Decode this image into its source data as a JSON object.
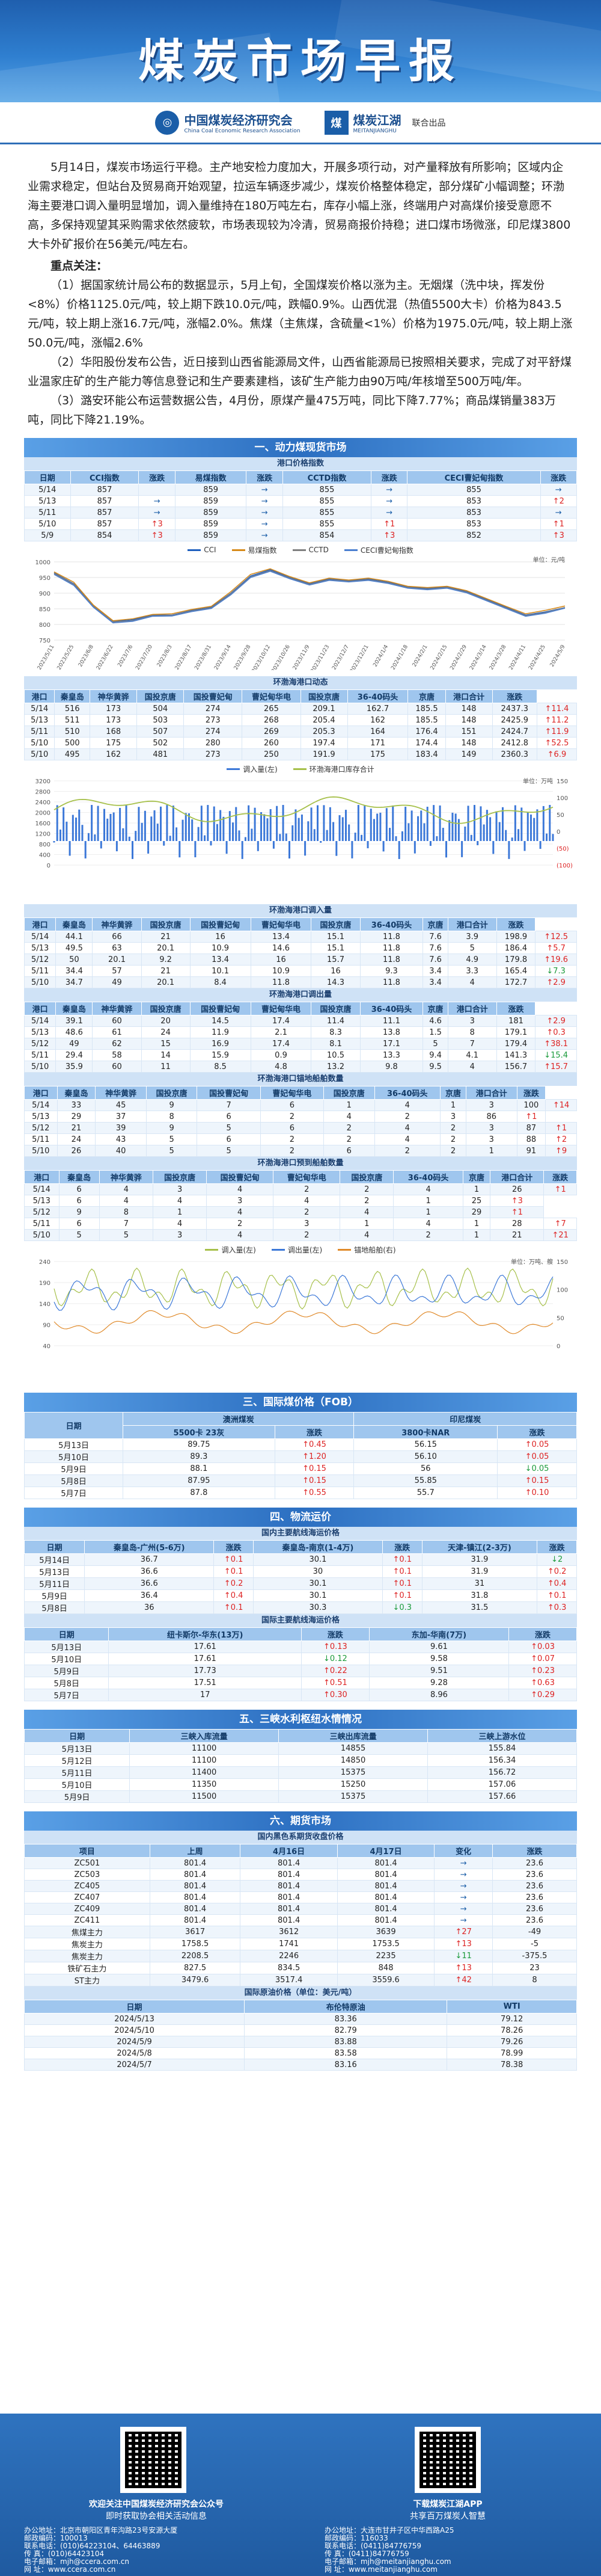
{
  "header": {
    "title": "煤炭市场早报",
    "org1_name": "中国煤炭经济研究会",
    "org1_sub": "China Coal Economic Research Association",
    "org2_name": "煤炭江湖",
    "org2_sub": "MEITANJIANGHU",
    "joint": "联合出品"
  },
  "intro": {
    "p1": "5月14日，煤炭市场运行平稳。主产地安检力度加大，开展多项行动，对产量释放有所影响；区域内企业需求稳定，但站台及贸易商开始观望，拉运车辆逐步减少，煤炭价格整体稳定，部分煤矿小幅调整；环渤海主要港口调入量明显增加，调入量维持在180万吨左右，库存小幅上涨，终端用户对高煤价接受意愿不高，多保持观望其采购需求依然疲软，市场表现较为冷清，贸易商报价持稳；进口煤市场微涨，印尼煤3800大卡外矿报价在56美元/吨左右。",
    "h": "重点关注：",
    "p2": "（1）据国家统计局公布的数据显示，5月上旬，全国煤炭价格以涨为主。无烟煤（洗中块，挥发份<8%）价格1125.0元/吨，较上期下跌10.0元/吨，跌幅0.9%。山西优混（热值5500大卡）价格为843.5元/吨，较上期上涨16.7元/吨，涨幅2.0%。焦煤（主焦煤，含硫量<1%）价格为1975.0元/吨，较上期上涨50.0元/吨，涨幅2.6%",
    "p3": "（2）华阳股份发布公告，近日接到山西省能源局文件，山西省能源局已按照相关要求，完成了对平舒煤业温家庄矿的生产能力等信息登记和生产要素建档，该矿生产能力由90万吨/年核增至500万吨/年。",
    "p4": "（3）潞安环能公布运营数据公告，4月份，原煤产量475万吨，同比下降7.77%；商品煤销量383万吨，同比下降21.19%。"
  },
  "sec1": {
    "title": "一、动力煤现货市场",
    "sub": "港口价格指数",
    "headers": [
      "日期",
      "CCI指数",
      "涨跌",
      "易煤指数",
      "涨跌",
      "CCTD指数",
      "涨跌",
      "CECI曹妃甸指数",
      "涨跌"
    ],
    "rows": [
      [
        "5/14",
        "857",
        "",
        "859",
        "→",
        "855",
        "→",
        "855",
        "→"
      ],
      [
        "5/13",
        "857",
        "→",
        "859",
        "→",
        "855",
        "→",
        "853",
        "↑2"
      ],
      [
        "5/11",
        "857",
        "→",
        "859",
        "→",
        "855",
        "→",
        "853",
        "→"
      ],
      [
        "5/10",
        "857",
        "↑3",
        "859",
        "→",
        "855",
        "↑1",
        "853",
        "↑1"
      ],
      [
        "5/9",
        "854",
        "↑3",
        "859",
        "→",
        "854",
        "↑3",
        "852",
        "↑3"
      ]
    ],
    "legend": [
      "CCI",
      "易煤指数",
      "CCTD",
      "CECI曹妃甸指数"
    ],
    "unit": "单位：元/吨"
  },
  "chart1": {
    "type": "line",
    "ylim": [
      750,
      1000
    ],
    "yticks": [
      "1000",
      "950",
      "900",
      "850",
      "800",
      "750"
    ],
    "xlabels": [
      "2023/5/11",
      "2023/5/25",
      "2023/6/8",
      "2023/6/22",
      "2023/7/6",
      "2023/7/20",
      "2023/8/3",
      "2023/8/17",
      "2023/8/31",
      "2023/9/14",
      "2023/9/28",
      "2023/10/12",
      "2023/10/26",
      "2023/11/9",
      "2023/11/23",
      "2023/12/7",
      "2023/12/21",
      "2024/1/4",
      "2024/1/18",
      "2024/2/1",
      "2024/2/15",
      "2024/2/29",
      "2024/3/14",
      "2024/3/28",
      "2024/4/11",
      "2024/4/25",
      "2024/5/9"
    ],
    "series": [
      {
        "name": "CCI",
        "values": [
          965,
          930,
          860,
          810,
          815,
          830,
          830,
          845,
          855,
          900,
          955,
          975,
          950,
          930,
          945,
          940,
          945,
          935,
          920,
          915,
          920,
          905,
          880,
          855,
          830,
          840,
          854
        ]
      },
      {
        "name": "易煤指数",
        "values": [
          968,
          935,
          862,
          812,
          818,
          832,
          834,
          848,
          858,
          905,
          960,
          978,
          953,
          933,
          948,
          942,
          948,
          938,
          922,
          918,
          922,
          908,
          883,
          858,
          834,
          845,
          859
        ]
      },
      {
        "name": "CCTD",
        "values": [
          963,
          928,
          858,
          808,
          812,
          828,
          829,
          843,
          853,
          898,
          952,
          972,
          948,
          928,
          943,
          938,
          943,
          933,
          918,
          913,
          918,
          903,
          878,
          853,
          828,
          838,
          854
        ]
      },
      {
        "name": "CECI曹妃甸指数",
        "values": [
          960,
          925,
          855,
          805,
          810,
          826,
          827,
          841,
          851,
          895,
          950,
          970,
          946,
          926,
          941,
          936,
          941,
          931,
          916,
          911,
          916,
          901,
          876,
          851,
          826,
          836,
          852
        ]
      }
    ],
    "colors": [
      "#1f5fbf",
      "#d68a1a",
      "#7f7f7f",
      "#4a7fd0"
    ]
  },
  "sec2": {
    "sub": "环渤海港口动态",
    "headers": [
      "港口",
      "秦皇岛",
      "神华黄骅",
      "国投京唐",
      "国投曹妃甸",
      "曹妃甸华电",
      "国投京唐",
      "36-40码头",
      "京唐",
      "港口合计",
      "涨跌"
    ],
    "rows": [
      [
        "5/14",
        "516",
        "173",
        "504",
        "274",
        "265",
        "209.1",
        "162.7",
        "185.5",
        "148",
        "2437.3",
        "↑11.4"
      ],
      [
        "5/13",
        "511",
        "173",
        "503",
        "273",
        "268",
        "205.4",
        "162",
        "185.5",
        "148",
        "2425.9",
        "↑11.2"
      ],
      [
        "5/11",
        "510",
        "168",
        "507",
        "274",
        "269",
        "205.3",
        "164",
        "176.4",
        "151",
        "2424.7",
        "↑11.9"
      ],
      [
        "5/10",
        "500",
        "175",
        "502",
        "280",
        "260",
        "197.4",
        "171",
        "174.4",
        "148",
        "2412.8",
        "↑52.5"
      ],
      [
        "5/10",
        "495",
        "162",
        "481",
        "273",
        "250",
        "191.9",
        "175",
        "183.4",
        "149",
        "2360.3",
        "↑6.9"
      ]
    ],
    "headers_full": [
      "港口",
      "秦皇岛",
      "神华黄骅",
      "国投京唐",
      "国投曹妃甸",
      "曹妃甸华电",
      "国投京唐",
      "36-40码头",
      "京唐",
      "港口合计",
      "涨跌"
    ]
  },
  "chart2": {
    "type": "line",
    "legend": [
      "调入量(左)",
      "环渤海港口库存合计"
    ],
    "unit": "单位：万吨",
    "left": [
      "3200",
      "2800",
      "2400",
      "2000",
      "1600",
      "1200",
      "800",
      "400",
      "0"
    ],
    "right": [
      "150",
      "100",
      "50",
      "0",
      "(50)",
      "(100)"
    ]
  },
  "sec3": {
    "sub": "环渤海港口调入量",
    "headers": [
      "港口",
      "秦皇岛",
      "神华黄骅",
      "国投京唐",
      "国投曹妃甸",
      "曹妃甸华电",
      "国投京唐",
      "36-40码头",
      "京唐",
      "港口合计",
      "涨跌"
    ],
    "rows": [
      [
        "5/14",
        "44.1",
        "66",
        "21",
        "16",
        "13.4",
        "15.1",
        "11.8",
        "7.6",
        "3.9",
        "198.9",
        "↑12.5"
      ],
      [
        "5/13",
        "49.5",
        "63",
        "20.1",
        "10.9",
        "14.6",
        "15.1",
        "11.8",
        "7.6",
        "5",
        "186.4",
        "↑5.7"
      ],
      [
        "5/12",
        "50",
        "20.1",
        "9.2",
        "13.4",
        "16",
        "15.7",
        "11.8",
        "7.6",
        "4.9",
        "179.8",
        "↑19.6"
      ],
      [
        "5/11",
        "34.4",
        "57",
        "21",
        "10.1",
        "10.9",
        "16",
        "9.3",
        "3.4",
        "3.3",
        "165.4",
        "↓7.3"
      ],
      [
        "5/10",
        "34.7",
        "49",
        "20.1",
        "8.4",
        "11.8",
        "14.3",
        "11.8",
        "3.4",
        "4",
        "172.7",
        "↑2.9"
      ]
    ]
  },
  "sec4": {
    "sub": "环渤海港口调出量",
    "headers": [
      "港口",
      "秦皇岛",
      "神华黄骅",
      "国投京唐",
      "国投曹妃甸",
      "曹妃甸华电",
      "国投京唐",
      "36-40码头",
      "京唐",
      "港口合计",
      "涨跌"
    ],
    "rows": [
      [
        "5/14",
        "39.1",
        "60",
        "20",
        "14.5",
        "17.4",
        "11.4",
        "11.1",
        "4.6",
        "3",
        "181",
        "↑2.9"
      ],
      [
        "5/13",
        "48.6",
        "61",
        "24",
        "11.9",
        "2.1",
        "8.3",
        "13.8",
        "1.5",
        "8",
        "179.1",
        "↑0.3"
      ],
      [
        "5/12",
        "49",
        "62",
        "15",
        "16.9",
        "17.4",
        "8.1",
        "17.1",
        "5",
        "7",
        "179.4",
        "↑38.1"
      ],
      [
        "5/11",
        "29.4",
        "58",
        "14",
        "15.9",
        "0.9",
        "10.5",
        "13.3",
        "9.4",
        "4.1",
        "141.3",
        "↓15.4"
      ],
      [
        "5/10",
        "35.9",
        "60",
        "11",
        "8.5",
        "4.8",
        "13.2",
        "9.8",
        "9.5",
        "4",
        "156.7",
        "↑15.7"
      ]
    ]
  },
  "sec5": {
    "sub": "环渤海港口锚地船舶数量",
    "headers": [
      "港口",
      "秦皇岛",
      "神华黄骅",
      "国投京唐",
      "国投曹妃甸",
      "曹妃甸华电",
      "国投京唐",
      "36-40码头",
      "京唐",
      "港口合计",
      "涨跌"
    ],
    "rows": [
      [
        "5/14",
        "33",
        "45",
        "9",
        "7",
        "6",
        "1",
        "4",
        "1",
        "3",
        "100",
        "↑14"
      ],
      [
        "5/13",
        "29",
        "37",
        "8",
        "6",
        "2",
        "4",
        "2",
        "3",
        "86",
        "↑1"
      ],
      [
        "5/12",
        "21",
        "39",
        "9",
        "5",
        "6",
        "2",
        "4",
        "2",
        "3",
        "87",
        "↑1"
      ],
      [
        "5/11",
        "24",
        "43",
        "5",
        "6",
        "2",
        "2",
        "4",
        "2",
        "3",
        "88",
        "↑2"
      ],
      [
        "5/10",
        "26",
        "40",
        "5",
        "5",
        "2",
        "6",
        "2",
        "2",
        "1",
        "91",
        "↑9"
      ]
    ]
  },
  "sec6": {
    "sub": "环渤海港口预到船舶数量",
    "headers": [
      "港口",
      "秦皇岛",
      "神华黄骅",
      "国投京唐",
      "国投曹妃甸",
      "曹妃甸华电",
      "国投京唐",
      "36-40码头",
      "京唐",
      "港口合计",
      "涨跌"
    ],
    "rows": [
      [
        "5/14",
        "6",
        "4",
        "3",
        "4",
        "2",
        "2",
        "4",
        "1",
        "26",
        "↑1"
      ],
      [
        "5/13",
        "6",
        "4",
        "4",
        "3",
        "4",
        "2",
        "1",
        "25",
        "↑3"
      ],
      [
        "5/12",
        "9",
        "8",
        "1",
        "4",
        "2",
        "4",
        "1",
        "29",
        "↑1"
      ],
      [
        "5/11",
        "6",
        "7",
        "4",
        "2",
        "3",
        "1",
        "4",
        "1",
        "28",
        "↑7"
      ],
      [
        "5/10",
        "5",
        "5",
        "3",
        "4",
        "2",
        "4",
        "2",
        "1",
        "21",
        "↑21"
      ]
    ]
  },
  "chart3": {
    "legend": [
      "调入量(左)",
      "调出量(左)",
      "锚地船舶(右)"
    ],
    "unit": "单位：万吨、艘",
    "left": [
      "240",
      "190",
      "140",
      "90",
      "40"
    ],
    "right": [
      "150",
      "100",
      "50",
      "0"
    ]
  },
  "sec7": {
    "title": "三、国际煤价格（FOB）",
    "g1": "澳洲煤炭",
    "g2": "印尼煤炭",
    "h1": "5500卡 23灰",
    "h2": "涨跌",
    "h3": "3800卡NAR",
    "h4": "涨跌",
    "rowhead": "日期",
    "rows": [
      [
        "5月13日",
        "89.75",
        "↑0.45",
        "56.15",
        "↑0.05"
      ],
      [
        "5月10日",
        "89.3",
        "↑1.20",
        "56.10",
        "↑0.05"
      ],
      [
        "5月9日",
        "88.1",
        "↑0.15",
        "56",
        "↓0.05"
      ],
      [
        "5月8日",
        "87.95",
        "↑0.15",
        "55.85",
        "↑0.15"
      ],
      [
        "5月7日",
        "87.8",
        "↑0.55",
        "55.7",
        "↑0.10"
      ]
    ]
  },
  "sec8": {
    "title": "四、物流运价",
    "sub": "国内主要航线海运价格",
    "h": [
      "日期",
      "秦皇岛-广州(5-6万)",
      "涨跌",
      "秦皇岛-南京(1-4万)",
      "涨跌",
      "天津-镇江(2-3万)",
      "涨跌"
    ],
    "rows": [
      [
        "5月14日",
        "36.7",
        "↑0.1",
        "30.1",
        "↑0.1",
        "31.9",
        "↓2"
      ],
      [
        "5月13日",
        "36.6",
        "↑0.1",
        "30",
        "↑0.1",
        "31.9",
        "↑0.2"
      ],
      [
        "5月11日",
        "36.6",
        "↑0.2",
        "30.1",
        "↑0.1",
        "31",
        "↑0.4"
      ],
      [
        "5月9日",
        "36.4",
        "↑0.4",
        "30.1",
        "↑0.1",
        "31.8",
        "↑0.1"
      ],
      [
        "5月8日",
        "36",
        "↑0.1",
        "30.3",
        "↓0.3",
        "31.5",
        "↑0.3"
      ]
    ]
  },
  "sec9": {
    "sub": "国际主要航线海运价格",
    "h": [
      "日期",
      "纽卡斯尔-华东(13万)",
      "涨跌",
      "东加-华南(7万)",
      "涨跌"
    ],
    "rows": [
      [
        "5月13日",
        "17.61",
        "↑0.13",
        "9.61",
        "↑0.03"
      ],
      [
        "5月10日",
        "17.61",
        "↓0.12",
        "9.58",
        "↑0.07"
      ],
      [
        "5月9日",
        "17.73",
        "↑0.22",
        "9.51",
        "↑0.23"
      ],
      [
        "5月8日",
        "17.51",
        "↑0.51",
        "9.28",
        "↑0.63"
      ],
      [
        "5月7日",
        "17",
        "↑0.30",
        "8.96",
        "↑0.29"
      ]
    ]
  },
  "sec10": {
    "title": "五、三峡水利枢纽水情情况",
    "h": [
      "日期",
      "三峡入库流量",
      "三峡出库流量",
      "三峡上游水位"
    ],
    "rows": [
      [
        "5月13日",
        "11100",
        "14855",
        "155.84"
      ],
      [
        "5月12日",
        "11100",
        "14850",
        "156.34"
      ],
      [
        "5月11日",
        "11400",
        "15375",
        "156.72"
      ],
      [
        "5月10日",
        "11350",
        "15250",
        "157.06"
      ],
      [
        "5月9日",
        "11500",
        "15375",
        "157.66"
      ]
    ]
  },
  "sec11": {
    "title": "六、期货市场",
    "sub": "国内黑色系期货收盘价格",
    "h": [
      "项目",
      "上周",
      "4月16日",
      "4月17日",
      "变化",
      "涨跌"
    ],
    "rows": [
      [
        "ZC501",
        "801.4",
        "801.4",
        "801.4",
        "→",
        "23.6"
      ],
      [
        "ZC503",
        "801.4",
        "801.4",
        "801.4",
        "→",
        "23.6"
      ],
      [
        "ZC405",
        "801.4",
        "801.4",
        "801.4",
        "→",
        "23.6"
      ],
      [
        "ZC407",
        "801.4",
        "801.4",
        "801.4",
        "→",
        "23.6"
      ],
      [
        "ZC409",
        "801.4",
        "801.4",
        "801.4",
        "→",
        "23.6"
      ],
      [
        "ZC411",
        "801.4",
        "801.4",
        "801.4",
        "→",
        "23.6"
      ],
      [
        "焦煤主力",
        "3617",
        "3612",
        "3639",
        "↑27",
        "-49"
      ],
      [
        "焦炭主力",
        "1758.5",
        "1741",
        "1753.5",
        "↑13",
        "-5"
      ],
      [
        "焦炭主力",
        "2208.5",
        "2246",
        "2235",
        "↓11",
        "-375.5"
      ],
      [
        "铁矿石主力",
        "827.5",
        "834.5",
        "848",
        "↑13",
        "23"
      ],
      [
        "ST主力",
        "3479.6",
        "3517.4",
        "3559.6",
        "↑42",
        "8"
      ]
    ]
  },
  "sec12": {
    "sub": "国际原油价格（单位：美元/吨）",
    "h": [
      "日期",
      "布伦特原油",
      "WTI"
    ],
    "rows": [
      [
        "2024/5/13",
        "83.36",
        "79.12"
      ],
      [
        "2024/5/10",
        "82.79",
        "78.26"
      ],
      [
        "2024/5/9",
        "83.88",
        "79.26"
      ],
      [
        "2024/5/8",
        "83.58",
        "78.99"
      ],
      [
        "2024/5/7",
        "83.16",
        "78.38"
      ]
    ]
  },
  "footer": {
    "left_cap": "欢迎关注中国煤炭经济研究会公众号",
    "left_cap2": "即时获取协会相关活动信息",
    "right_cap": "下载煤炭江湖APP",
    "right_cap2": "共享百万煤炭人智慧",
    "l1": "办公地址：北京市朝阳区青年沟路23号安源大厦",
    "l2": "邮政编码：100013",
    "l3": "联系电话：(010)64223104、64463889",
    "l4": "传      真：(010)64423104",
    "l5": "电子邮箱：mjh@ccera.com.cn",
    "l6": "网      址：www.ccera.com.cn",
    "r1": "办公地址：大连市甘井子区中华西路A25",
    "r2": "邮政编码：116033",
    "r3": "联系电话：(0411)84776759",
    "r4": "传      真：(0411)84776759",
    "r5": "电子邮箱：mjh@meitanjianghu.com",
    "r6": "网      址：www.meitanjianghu.com"
  }
}
